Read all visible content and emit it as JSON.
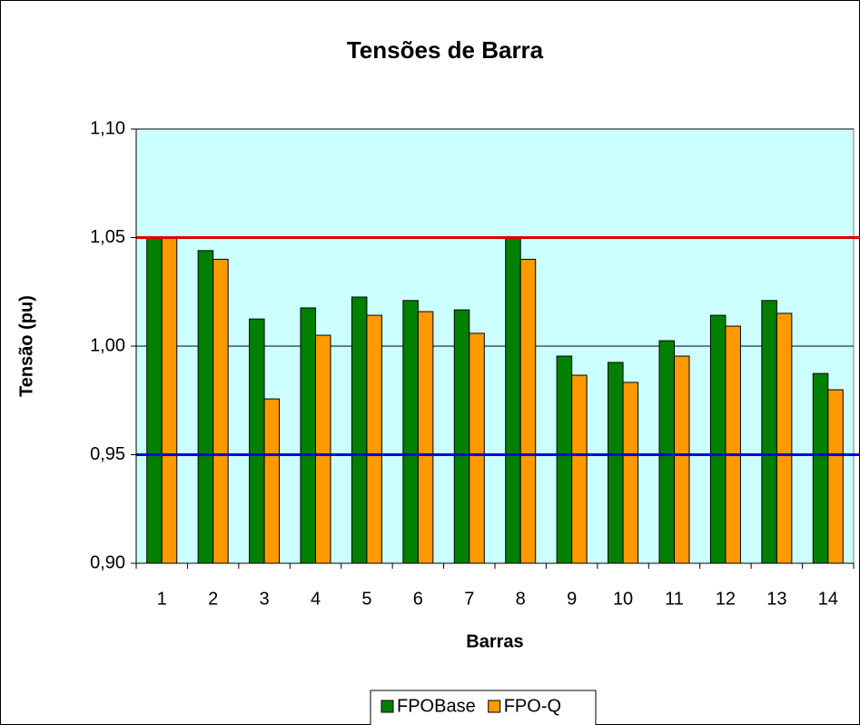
{
  "chart_data": {
    "type": "bar",
    "title": "Tensões de Barra",
    "x_label": "Barras",
    "y_label": "Tensão (pu)",
    "categories": [
      "1",
      "2",
      "3",
      "4",
      "5",
      "6",
      "7",
      "8",
      "9",
      "10",
      "11",
      "12",
      "13",
      "14"
    ],
    "series": [
      {
        "name": "FPOBase",
        "color": "#008000",
        "values": [
          1.05,
          1.044,
          1.0125,
          1.0176,
          1.0226,
          1.021,
          1.0167,
          1.05,
          0.9954,
          0.9925,
          1.0025,
          1.0142,
          1.021,
          0.9874
        ]
      },
      {
        "name": "FPO-Q",
        "color": "#ff9900",
        "values": [
          1.05,
          1.04,
          0.9757,
          1.005,
          1.0142,
          1.0159,
          1.0059,
          1.04,
          0.9866,
          0.9833,
          0.9954,
          1.0092,
          1.0151,
          0.9799
        ]
      }
    ],
    "ylim": [
      0.9,
      1.1
    ],
    "yticks": [
      {
        "value": 0.9,
        "label": "0,90"
      },
      {
        "value": 0.95,
        "label": "0,95"
      },
      {
        "value": 1.0,
        "label": "1,00"
      },
      {
        "value": 1.05,
        "label": "1,05"
      },
      {
        "value": 1.1,
        "label": "1,10"
      }
    ],
    "grid": true,
    "reference_lines": [
      {
        "value": 1.05,
        "color": "#e00000"
      },
      {
        "value": 0.95,
        "color": "#0000e0"
      }
    ],
    "plot_background": "#ccffff",
    "legend": "bottom"
  }
}
